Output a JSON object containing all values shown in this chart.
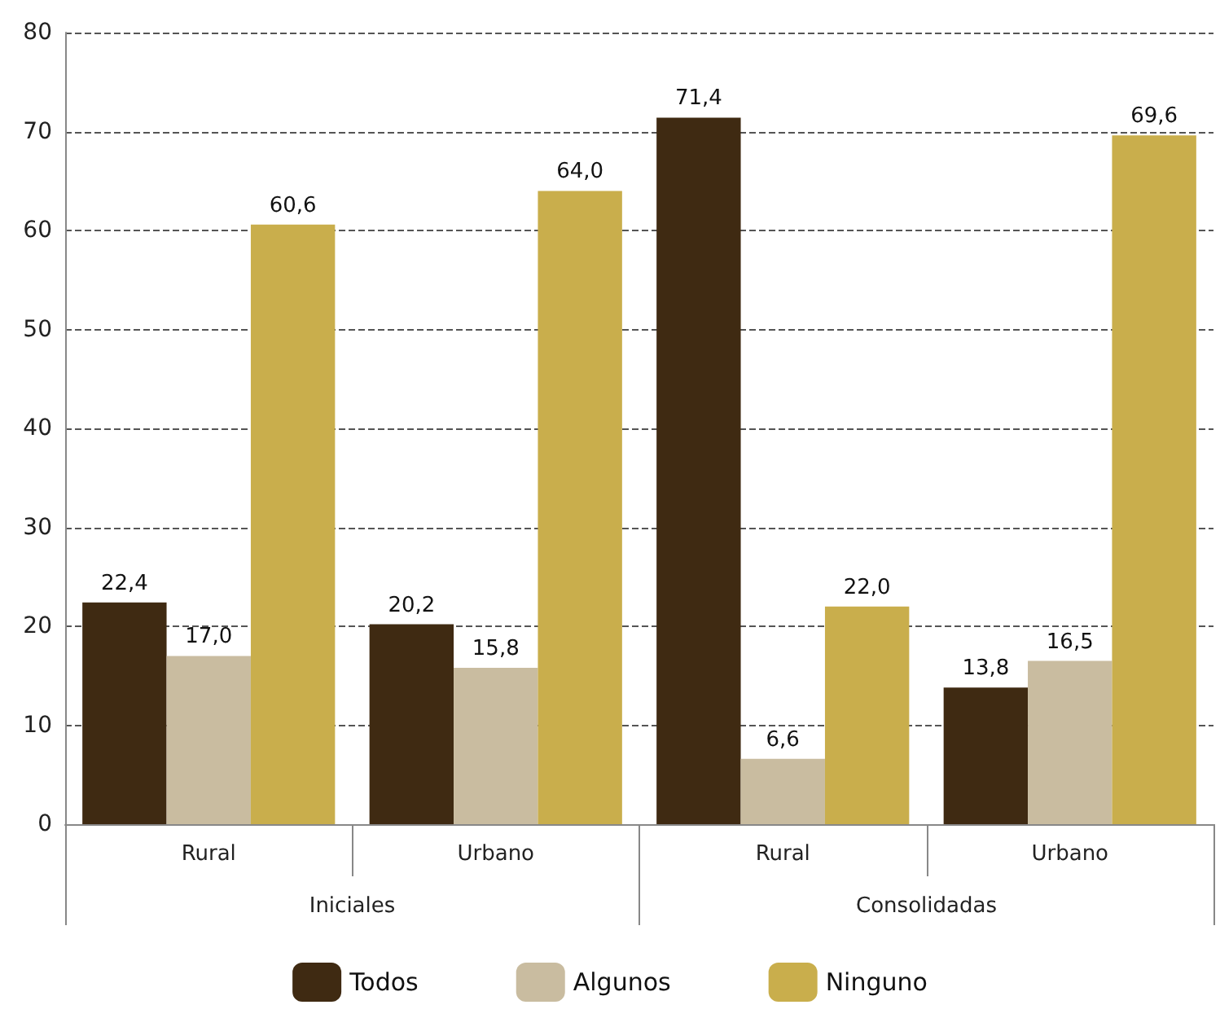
{
  "chart_data": {
    "type": "bar",
    "categories": [
      "Rural",
      "Urbano",
      "Rural",
      "Urbano"
    ],
    "annotations": [
      "Iniciales",
      "Consolidadas"
    ],
    "series": [
      {
        "name": "Todos",
        "color": "#3f2a12",
        "values": [
          22.4,
          20.2,
          71.4,
          13.8
        ],
        "value_labels": [
          "22,4",
          "20,2",
          "71,4",
          "13,8"
        ]
      },
      {
        "name": "Algunos",
        "color": "#c9bca0",
        "values": [
          17.0,
          15.8,
          6.6,
          16.5
        ],
        "value_labels": [
          "17,0",
          "15,8",
          "6,6",
          "16,5"
        ]
      },
      {
        "name": "Ninguno",
        "color": "#c9ae4c",
        "values": [
          60.6,
          64.0,
          22.0,
          69.6
        ],
        "value_labels": [
          "60,6",
          "64,0",
          "22,0",
          "69,6"
        ]
      }
    ],
    "ylim": [
      0,
      80
    ],
    "yticks": [
      0,
      10,
      20,
      30,
      40,
      50,
      60,
      70,
      80
    ],
    "grid": "y",
    "line_style": "dashed",
    "legend": "bottom"
  }
}
